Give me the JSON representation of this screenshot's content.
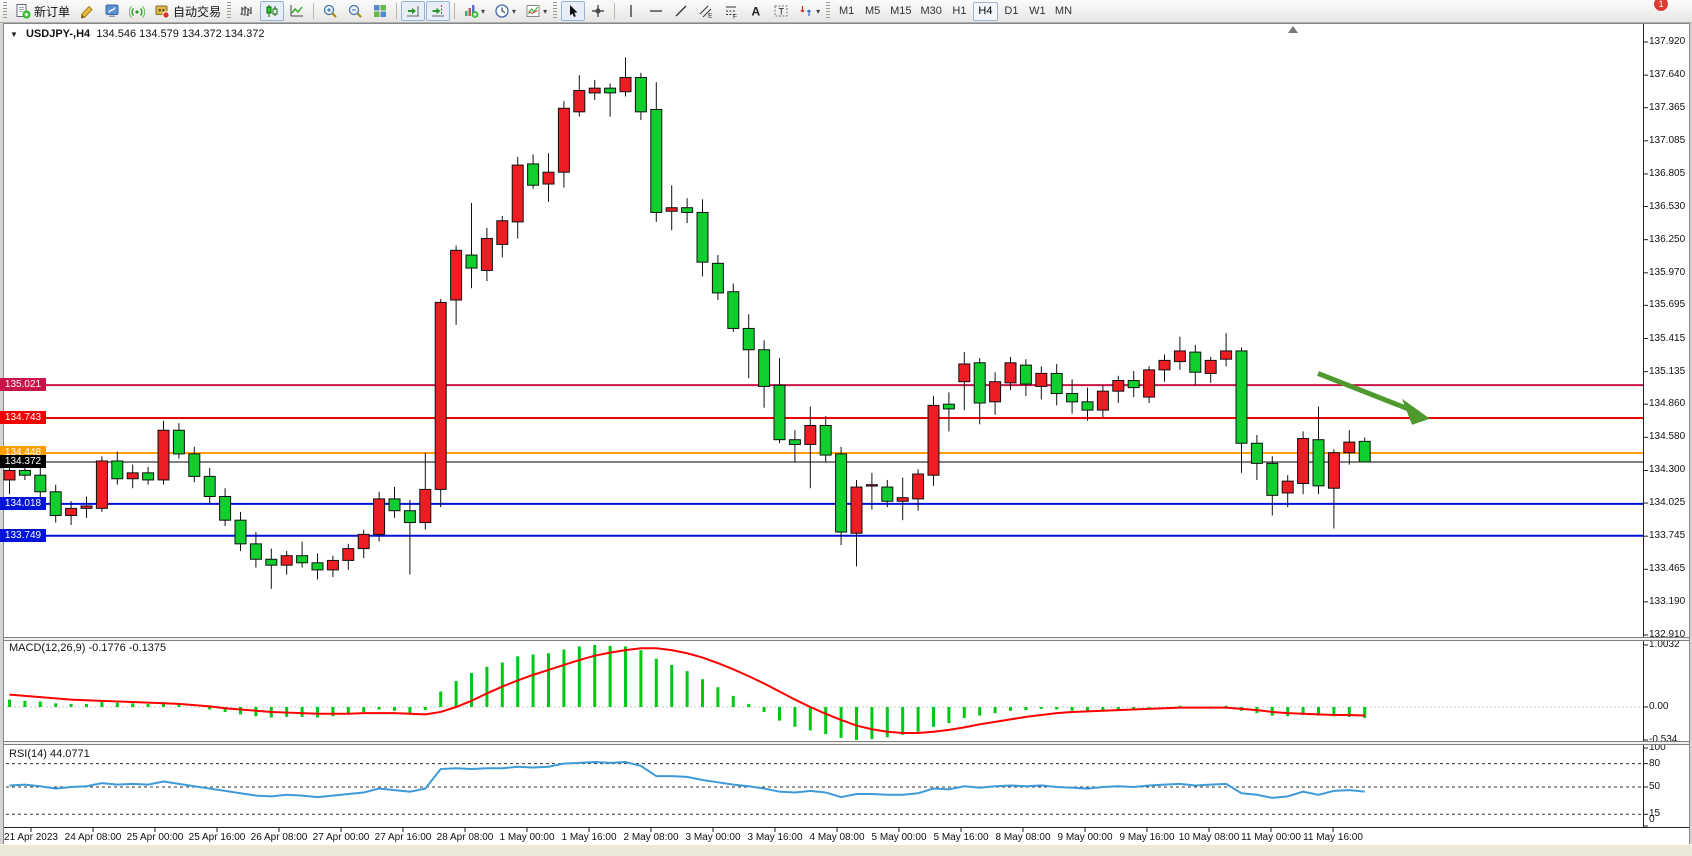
{
  "app": {
    "toolbar": {
      "groups": [
        {
          "grip": true,
          "items": [
            {
              "icon": "new-order",
              "label": "新订单",
              "name": "new-order-button"
            },
            {
              "icon": "brush",
              "name": "styler-button"
            },
            {
              "icon": "editor",
              "name": "metaeditor-button"
            },
            {
              "icon": "signal",
              "name": "signals-button"
            },
            {
              "icon": "autotrade",
              "label": "自动交易",
              "name": "autotrading-button"
            }
          ]
        },
        {
          "grip": true,
          "items": [
            {
              "icon": "bar-chart",
              "name": "bar-chart-button"
            },
            {
              "icon": "candles",
              "name": "candlestick-button",
              "pressed": true
            },
            {
              "icon": "line-chart",
              "name": "line-chart-button"
            },
            {
              "divider": true
            },
            {
              "icon": "zoom-in",
              "name": "zoom-in-button"
            },
            {
              "icon": "zoom-out",
              "name": "zoom-out-button"
            },
            {
              "icon": "tile-windows",
              "name": "tile-windows-button"
            },
            {
              "divider": true
            },
            {
              "icon": "auto-scroll",
              "name": "auto-scroll-button",
              "pressed": true
            },
            {
              "icon": "chart-shift",
              "name": "chart-shift-button",
              "pressed": true
            },
            {
              "divider": true
            },
            {
              "icon": "indicators",
              "name": "indicators-button",
              "dropdown": true
            },
            {
              "icon": "periods",
              "name": "periods-button",
              "dropdown": true
            },
            {
              "icon": "templates",
              "name": "templates-button",
              "dropdown": true
            }
          ]
        },
        {
          "grip": true,
          "items": [
            {
              "icon": "cursor",
              "name": "cursor-button",
              "pressed": true
            },
            {
              "icon": "crosshair",
              "name": "crosshair-button"
            },
            {
              "divider": true
            },
            {
              "icon": "vline",
              "name": "vertical-line-button"
            },
            {
              "icon": "hline",
              "name": "horizontal-line-button"
            },
            {
              "icon": "trendline",
              "name": "trendline-button"
            },
            {
              "icon": "channel",
              "name": "equidistant-channel-button"
            },
            {
              "icon": "fibo",
              "name": "fibonacci-button"
            },
            {
              "icon": "text",
              "name": "text-button"
            },
            {
              "icon": "label",
              "name": "text-label-button"
            },
            {
              "icon": "arrows",
              "name": "arrows-button",
              "dropdown": true
            }
          ]
        },
        {
          "grip": true,
          "timeframes": [
            {
              "label": "M1"
            },
            {
              "label": "M5"
            },
            {
              "label": "M15"
            },
            {
              "label": "M30"
            },
            {
              "label": "H1"
            },
            {
              "label": "H4",
              "active": true
            },
            {
              "label": "D1"
            },
            {
              "label": "W1"
            },
            {
              "label": "MN"
            }
          ]
        }
      ],
      "right": [
        {
          "icon": "search",
          "name": "search-button"
        },
        {
          "icon": "chat",
          "name": "chat-button",
          "badge": "1"
        }
      ]
    }
  },
  "chart_data": [
    {
      "type": "candlestick",
      "title": "USDJPY-,H4",
      "ohlc_label": "134.546 134.579 134.372 134.372",
      "up_color": "#ee1c23",
      "down_color": "#0fce2e",
      "wick_color": "#111111",
      "ylim": [
        132.91,
        137.92
      ],
      "price_ticks": [
        "137.920",
        "137.640",
        "137.365",
        "137.085",
        "136.805",
        "136.530",
        "136.250",
        "135.970",
        "135.695",
        "135.415",
        "135.135",
        "134.860",
        "134.580",
        "134.300",
        "134.025",
        "133.745",
        "133.465",
        "133.190",
        "132.910"
      ],
      "hlines": [
        {
          "price": 135.021,
          "label": "135.021",
          "color": "#c81447",
          "width": 2
        },
        {
          "price": 134.743,
          "label": "134.743",
          "color": "#f40000",
          "width": 2
        },
        {
          "price": 134.448,
          "label": "134.448",
          "color": "#ff9e00",
          "width": 2
        },
        {
          "price": 134.372,
          "label": "134.372",
          "color": "#000000",
          "width": 1
        },
        {
          "price": 134.018,
          "label": "134.018",
          "color": "#0013d8",
          "width": 2
        },
        {
          "price": 133.749,
          "label": "133.749",
          "color": "#0013d8",
          "width": 2
        }
      ],
      "x_labels": [
        "21 Apr 2023",
        "24 Apr 08:00",
        "25 Apr 00:00",
        "25 Apr 16:00",
        "26 Apr 08:00",
        "27 Apr 00:00",
        "27 Apr 16:00",
        "28 Apr 08:00",
        "1 May 00:00",
        "1 May 16:00",
        "2 May 08:00",
        "3 May 00:00",
        "3 May 16:00",
        "4 May 08:00",
        "5 May 00:00",
        "5 May 16:00",
        "8 May 08:00",
        "9 May 00:00",
        "9 May 16:00",
        "10 May 08:00",
        "11 May 00:00",
        "11 May 16:00"
      ],
      "candles": [
        [
          134.22,
          134.4,
          134.1,
          134.3
        ],
        [
          134.3,
          134.44,
          134.22,
          134.26
        ],
        [
          134.26,
          134.34,
          134.05,
          134.12
        ],
        [
          134.12,
          134.18,
          133.86,
          133.92
        ],
        [
          133.92,
          134.04,
          133.84,
          133.98
        ],
        [
          133.98,
          134.08,
          133.9,
          134.0
        ],
        [
          133.98,
          134.42,
          133.95,
          134.38
        ],
        [
          134.38,
          134.46,
          134.18,
          134.23
        ],
        [
          134.23,
          134.35,
          134.15,
          134.28
        ],
        [
          134.28,
          134.33,
          134.18,
          134.22
        ],
        [
          134.22,
          134.72,
          134.18,
          134.64
        ],
        [
          134.64,
          134.7,
          134.4,
          134.44
        ],
        [
          134.44,
          134.5,
          134.2,
          134.25
        ],
        [
          134.25,
          134.32,
          134.02,
          134.08
        ],
        [
          134.08,
          134.15,
          133.83,
          133.88
        ],
        [
          133.88,
          133.95,
          133.62,
          133.68
        ],
        [
          133.68,
          133.78,
          133.48,
          133.55
        ],
        [
          133.55,
          133.64,
          133.3,
          133.5
        ],
        [
          133.5,
          133.62,
          133.42,
          133.58
        ],
        [
          133.58,
          133.7,
          133.48,
          133.52
        ],
        [
          133.52,
          133.6,
          133.38,
          133.46
        ],
        [
          133.46,
          133.58,
          133.4,
          133.54
        ],
        [
          133.54,
          133.68,
          133.46,
          133.64
        ],
        [
          133.64,
          133.8,
          133.56,
          133.76
        ],
        [
          133.76,
          134.12,
          133.7,
          134.06
        ],
        [
          134.06,
          134.16,
          133.9,
          133.96
        ],
        [
          133.96,
          134.05,
          133.42,
          133.86
        ],
        [
          133.86,
          134.45,
          133.8,
          134.14
        ],
        [
          134.14,
          135.75,
          133.99,
          135.72
        ],
        [
          135.74,
          136.2,
          135.53,
          136.16
        ],
        [
          136.12,
          136.56,
          135.84,
          136.01
        ],
        [
          135.99,
          136.35,
          135.9,
          136.26
        ],
        [
          136.21,
          136.45,
          136.1,
          136.41
        ],
        [
          136.4,
          136.95,
          136.26,
          136.88
        ],
        [
          136.89,
          136.97,
          136.68,
          136.71
        ],
        [
          136.72,
          136.98,
          136.57,
          136.82
        ],
        [
          136.82,
          137.42,
          136.69,
          137.36
        ],
        [
          137.33,
          137.64,
          137.29,
          137.51
        ],
        [
          137.49,
          137.6,
          137.43,
          137.53
        ],
        [
          137.53,
          137.57,
          137.29,
          137.49
        ],
        [
          137.5,
          137.79,
          137.46,
          137.62
        ],
        [
          137.62,
          137.66,
          137.26,
          137.33
        ],
        [
          137.35,
          137.58,
          136.4,
          136.48
        ],
        [
          136.49,
          136.71,
          136.33,
          136.52
        ],
        [
          136.52,
          136.6,
          136.39,
          136.48
        ],
        [
          136.48,
          136.59,
          135.94,
          136.06
        ],
        [
          136.05,
          136.12,
          135.74,
          135.8
        ],
        [
          135.81,
          135.88,
          135.47,
          135.5
        ],
        [
          135.5,
          135.62,
          135.08,
          135.32
        ],
        [
          135.32,
          135.4,
          134.83,
          135.01
        ],
        [
          135.02,
          135.25,
          134.53,
          134.56
        ],
        [
          134.56,
          134.64,
          134.37,
          134.52
        ],
        [
          134.52,
          134.84,
          134.15,
          134.68
        ],
        [
          134.68,
          134.76,
          134.37,
          134.43
        ],
        [
          134.44,
          134.5,
          133.67,
          133.78
        ],
        [
          133.77,
          134.22,
          133.49,
          134.16
        ],
        [
          134.17,
          134.28,
          133.97,
          134.18
        ],
        [
          134.16,
          134.22,
          133.99,
          134.04
        ],
        [
          134.04,
          134.24,
          133.88,
          134.07
        ],
        [
          134.06,
          134.31,
          133.96,
          134.27
        ],
        [
          134.26,
          134.93,
          134.17,
          134.85
        ],
        [
          134.86,
          134.96,
          134.63,
          134.82
        ],
        [
          135.05,
          135.3,
          134.81,
          135.2
        ],
        [
          135.21,
          135.25,
          134.69,
          134.87
        ],
        [
          134.88,
          135.13,
          134.77,
          135.05
        ],
        [
          135.04,
          135.26,
          134.98,
          135.21
        ],
        [
          135.19,
          135.24,
          134.93,
          135.03
        ],
        [
          135.01,
          135.18,
          134.9,
          135.12
        ],
        [
          135.12,
          135.2,
          134.85,
          134.95
        ],
        [
          134.95,
          135.07,
          134.78,
          134.88
        ],
        [
          134.88,
          135.0,
          134.72,
          134.81
        ],
        [
          134.81,
          135.02,
          134.75,
          134.97
        ],
        [
          134.97,
          135.1,
          134.87,
          135.06
        ],
        [
          135.06,
          135.14,
          134.92,
          135.0
        ],
        [
          134.92,
          135.18,
          134.87,
          135.15
        ],
        [
          135.15,
          135.28,
          135.05,
          135.23
        ],
        [
          135.22,
          135.43,
          135.15,
          135.31
        ],
        [
          135.3,
          135.36,
          135.02,
          135.13
        ],
        [
          135.12,
          135.26,
          135.04,
          135.23
        ],
        [
          135.24,
          135.46,
          135.18,
          135.31
        ],
        [
          135.31,
          135.34,
          134.28,
          134.53
        ],
        [
          134.53,
          134.6,
          134.22,
          134.36
        ],
        [
          134.36,
          134.42,
          133.92,
          134.09
        ],
        [
          134.11,
          134.26,
          133.99,
          134.21
        ],
        [
          134.19,
          134.63,
          134.1,
          134.57
        ],
        [
          134.56,
          134.84,
          134.1,
          134.17
        ],
        [
          134.15,
          134.48,
          133.81,
          134.45
        ],
        [
          134.45,
          134.64,
          134.35,
          134.54
        ],
        [
          134.546,
          134.579,
          134.372,
          134.372
        ]
      ],
      "annotation_arrow": {
        "color": "#4e9a2e",
        "from_price": 135.12,
        "to_price": 134.72
      }
    },
    {
      "type": "bar",
      "name": "MACD(12,26,9)",
      "values_text": "-0.1776 -0.1375",
      "axis_labels": [
        "1.0032",
        "0.00",
        "-0.534"
      ],
      "hist_color": "#00c814",
      "signal_color": "#ff0000",
      "histogram": [
        0.12,
        0.1,
        0.09,
        0.06,
        0.05,
        0.05,
        0.08,
        0.07,
        0.06,
        0.05,
        0.08,
        0.04,
        0.0,
        -0.04,
        -0.08,
        -0.12,
        -0.15,
        -0.17,
        -0.16,
        -0.16,
        -0.17,
        -0.15,
        -0.12,
        -0.08,
        -0.04,
        -0.06,
        -0.1,
        -0.05,
        0.25,
        0.42,
        0.55,
        0.65,
        0.72,
        0.82,
        0.85,
        0.87,
        0.93,
        0.98,
        1.0032,
        0.99,
        0.98,
        0.92,
        0.78,
        0.68,
        0.58,
        0.45,
        0.32,
        0.18,
        0.05,
        -0.08,
        -0.22,
        -0.32,
        -0.38,
        -0.44,
        -0.5,
        -0.534,
        -0.52,
        -0.49,
        -0.45,
        -0.4,
        -0.32,
        -0.26,
        -0.18,
        -0.14,
        -0.1,
        -0.06,
        -0.05,
        -0.03,
        -0.04,
        -0.06,
        -0.07,
        -0.06,
        -0.04,
        -0.03,
        -0.02,
        0.0,
        0.02,
        -0.01,
        0.01,
        0.02,
        -0.06,
        -0.1,
        -0.14,
        -0.15,
        -0.13,
        -0.14,
        -0.15,
        -0.16,
        -0.1776
      ],
      "signal": [
        0.2,
        0.18,
        0.16,
        0.14,
        0.12,
        0.11,
        0.1,
        0.09,
        0.08,
        0.07,
        0.06,
        0.05,
        0.03,
        0.01,
        -0.02,
        -0.04,
        -0.06,
        -0.08,
        -0.09,
        -0.1,
        -0.11,
        -0.11,
        -0.11,
        -0.1,
        -0.1,
        -0.1,
        -0.11,
        -0.12,
        -0.08,
        0.0,
        0.1,
        0.22,
        0.33,
        0.43,
        0.52,
        0.6,
        0.68,
        0.76,
        0.83,
        0.88,
        0.92,
        0.95,
        0.95,
        0.92,
        0.87,
        0.8,
        0.71,
        0.61,
        0.5,
        0.38,
        0.25,
        0.12,
        0.0,
        -0.11,
        -0.21,
        -0.3,
        -0.36,
        -0.4,
        -0.42,
        -0.42,
        -0.4,
        -0.37,
        -0.33,
        -0.28,
        -0.24,
        -0.2,
        -0.16,
        -0.13,
        -0.1,
        -0.08,
        -0.07,
        -0.06,
        -0.05,
        -0.04,
        -0.03,
        -0.02,
        -0.01,
        -0.01,
        -0.01,
        -0.01,
        -0.03,
        -0.05,
        -0.08,
        -0.1,
        -0.11,
        -0.12,
        -0.13,
        -0.13,
        -0.1375
      ]
    },
    {
      "type": "line",
      "name": "RSI(14)",
      "value_text": "44.0771",
      "axis_labels": [
        "100",
        "80",
        "50",
        "15",
        "0"
      ],
      "levels": [
        80,
        50,
        15
      ],
      "line_color": "#3f9bd8",
      "values": [
        52,
        53,
        51,
        48,
        50,
        51,
        55,
        53,
        54,
        53,
        57,
        54,
        51,
        48,
        45,
        42,
        39,
        38,
        40,
        39,
        37,
        39,
        41,
        43,
        48,
        46,
        44,
        48,
        73,
        74,
        73,
        74,
        74,
        76,
        75,
        76,
        80,
        81,
        82,
        81,
        82,
        77,
        64,
        64,
        63,
        59,
        56,
        53,
        51,
        48,
        44,
        43,
        45,
        43,
        37,
        41,
        41,
        40,
        40,
        42,
        48,
        47,
        51,
        49,
        51,
        52,
        51,
        52,
        50,
        49,
        48,
        50,
        51,
        50,
        52,
        53,
        54,
        52,
        53,
        54,
        42,
        40,
        36,
        38,
        44,
        40,
        45,
        46,
        44.08
      ]
    }
  ]
}
